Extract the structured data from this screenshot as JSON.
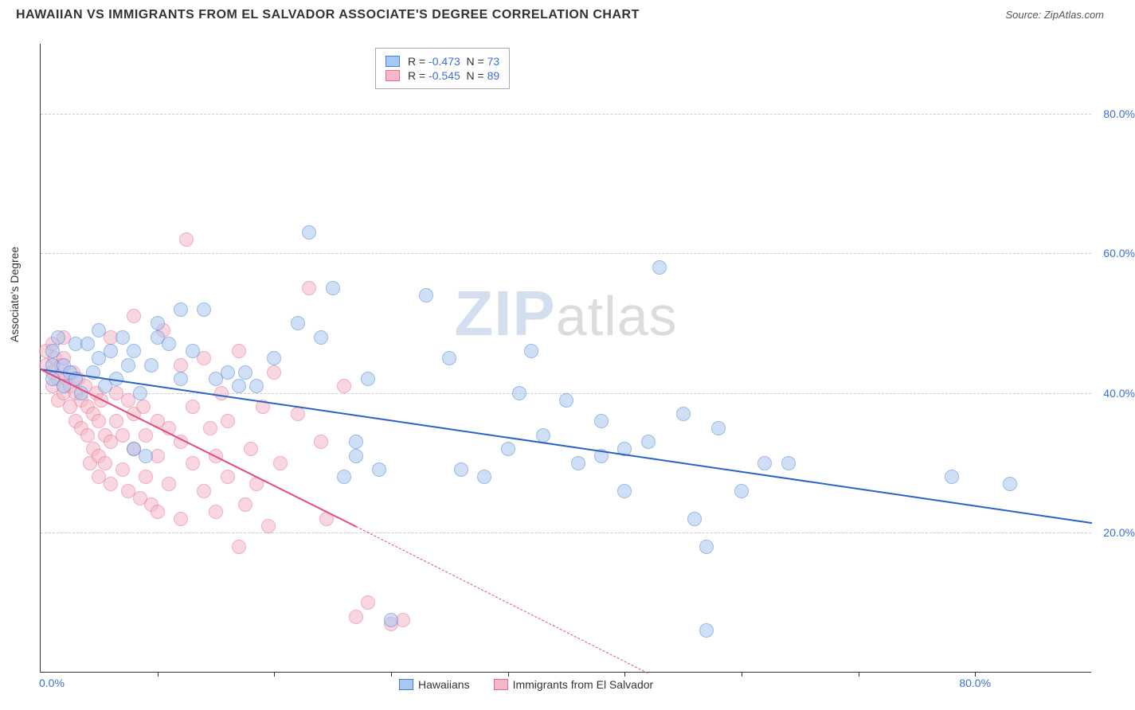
{
  "header": {
    "title": "HAWAIIAN VS IMMIGRANTS FROM EL SALVADOR ASSOCIATE'S DEGREE CORRELATION CHART",
    "source": "Source: ZipAtlas.com"
  },
  "chart": {
    "type": "scatter",
    "ylabel": "Associate's Degree",
    "watermark_left": "ZIP",
    "watermark_right": "atlas",
    "background_color": "#ffffff",
    "grid_color": "#cccccc",
    "axis_color": "#333333",
    "xlim": [
      0,
      90
    ],
    "ylim": [
      0,
      90
    ],
    "yticks": [
      {
        "v": 20,
        "label": "20.0%"
      },
      {
        "v": 40,
        "label": "40.0%"
      },
      {
        "v": 60,
        "label": "60.0%"
      },
      {
        "v": 80,
        "label": "80.0%"
      }
    ],
    "xtick_left": {
      "v": 0,
      "label": "0.0%"
    },
    "xtick_right": {
      "v": 80,
      "label": "80.0%"
    },
    "xtick_marks": [
      10,
      20,
      30,
      40,
      50,
      60,
      70,
      80
    ],
    "series": [
      {
        "name": "Hawaiians",
        "fill_color": "#a8c8f0",
        "fill_opacity": 0.55,
        "stroke_color": "#4a7fd8",
        "marker_radius": 9,
        "R": "-0.473",
        "N": "73",
        "trend": {
          "x1": 0,
          "y1": 43.5,
          "x2": 90,
          "y2": 21.5,
          "color": "#2a62c8"
        },
        "points": [
          [
            1,
            44
          ],
          [
            1,
            46
          ],
          [
            1,
            42
          ],
          [
            1.5,
            48
          ],
          [
            2,
            44
          ],
          [
            2,
            41
          ],
          [
            2.5,
            43
          ],
          [
            3,
            47
          ],
          [
            3,
            42
          ],
          [
            3.5,
            40
          ],
          [
            4,
            47
          ],
          [
            4.5,
            43
          ],
          [
            5,
            45
          ],
          [
            5,
            49
          ],
          [
            5.5,
            41
          ],
          [
            6,
            46
          ],
          [
            6.5,
            42
          ],
          [
            7,
            48
          ],
          [
            7.5,
            44
          ],
          [
            8,
            46
          ],
          [
            8,
            32
          ],
          [
            8.5,
            40
          ],
          [
            9,
            31
          ],
          [
            9.5,
            44
          ],
          [
            10,
            48
          ],
          [
            10,
            50
          ],
          [
            11,
            47
          ],
          [
            12,
            42
          ],
          [
            12,
            52
          ],
          [
            13,
            46
          ],
          [
            14,
            52
          ],
          [
            15,
            42
          ],
          [
            16,
            43
          ],
          [
            17,
            41
          ],
          [
            17.5,
            43
          ],
          [
            18.5,
            41
          ],
          [
            20,
            45
          ],
          [
            22,
            50
          ],
          [
            23,
            63
          ],
          [
            24,
            48
          ],
          [
            25,
            55
          ],
          [
            26,
            28
          ],
          [
            27,
            33
          ],
          [
            27,
            31
          ],
          [
            28,
            42
          ],
          [
            29,
            29
          ],
          [
            30,
            7.5
          ],
          [
            33,
            54
          ],
          [
            35,
            45
          ],
          [
            36,
            29
          ],
          [
            38,
            28
          ],
          [
            40,
            32
          ],
          [
            41,
            40
          ],
          [
            42,
            46
          ],
          [
            43,
            34
          ],
          [
            45,
            39
          ],
          [
            46,
            30
          ],
          [
            48,
            36
          ],
          [
            48,
            31
          ],
          [
            50,
            32
          ],
          [
            50,
            26
          ],
          [
            52,
            33
          ],
          [
            53,
            58
          ],
          [
            55,
            37
          ],
          [
            56,
            22
          ],
          [
            57,
            18
          ],
          [
            57,
            6
          ],
          [
            58,
            35
          ],
          [
            60,
            26
          ],
          [
            62,
            30
          ],
          [
            64,
            30
          ],
          [
            78,
            28
          ],
          [
            83,
            27
          ]
        ]
      },
      {
        "name": "Immigrants from El Salvador",
        "fill_color": "#f5b8c8",
        "fill_opacity": 0.55,
        "stroke_color": "#e86a8e",
        "marker_radius": 9,
        "R": "-0.545",
        "N": "89",
        "trend": {
          "x1": 0,
          "y1": 43.5,
          "x2": 27,
          "y2": 21,
          "color": "#e84a7a"
        },
        "trend_dash": {
          "x1": 27,
          "y1": 21,
          "x2": 52,
          "y2": 0,
          "color": "#e84a7a"
        },
        "points": [
          [
            0.5,
            46
          ],
          [
            0.5,
            44
          ],
          [
            1,
            47
          ],
          [
            1,
            43
          ],
          [
            1,
            41
          ],
          [
            1.2,
            45
          ],
          [
            1.5,
            42
          ],
          [
            1.5,
            39
          ],
          [
            1.8,
            44
          ],
          [
            2,
            48
          ],
          [
            2,
            40
          ],
          [
            2,
            45
          ],
          [
            2.2,
            42
          ],
          [
            2.5,
            41
          ],
          [
            2.5,
            38
          ],
          [
            2.8,
            43
          ],
          [
            3,
            40
          ],
          [
            3,
            36
          ],
          [
            3.2,
            42
          ],
          [
            3.5,
            39
          ],
          [
            3.5,
            35
          ],
          [
            3.8,
            41
          ],
          [
            4,
            38
          ],
          [
            4,
            34
          ],
          [
            4.2,
            30
          ],
          [
            4.5,
            37
          ],
          [
            4.5,
            32
          ],
          [
            4.8,
            40
          ],
          [
            5,
            36
          ],
          [
            5,
            31
          ],
          [
            5,
            28
          ],
          [
            5.2,
            39
          ],
          [
            5.5,
            34
          ],
          [
            5.5,
            30
          ],
          [
            6,
            48
          ],
          [
            6,
            33
          ],
          [
            6,
            27
          ],
          [
            6.5,
            40
          ],
          [
            6.5,
            36
          ],
          [
            7,
            34
          ],
          [
            7,
            29
          ],
          [
            7.5,
            39
          ],
          [
            7.5,
            26
          ],
          [
            8,
            37
          ],
          [
            8,
            32
          ],
          [
            8,
            51
          ],
          [
            8.5,
            25
          ],
          [
            8.8,
            38
          ],
          [
            9,
            34
          ],
          [
            9,
            28
          ],
          [
            9.5,
            24
          ],
          [
            10,
            36
          ],
          [
            10,
            31
          ],
          [
            10,
            23
          ],
          [
            10.5,
            49
          ],
          [
            11,
            35
          ],
          [
            11,
            27
          ],
          [
            12,
            44
          ],
          [
            12,
            33
          ],
          [
            12,
            22
          ],
          [
            12.5,
            62
          ],
          [
            13,
            38
          ],
          [
            13,
            30
          ],
          [
            14,
            26
          ],
          [
            14,
            45
          ],
          [
            14.5,
            35
          ],
          [
            15,
            23
          ],
          [
            15,
            31
          ],
          [
            15.5,
            40
          ],
          [
            16,
            28
          ],
          [
            16,
            36
          ],
          [
            17,
            18
          ],
          [
            17,
            46
          ],
          [
            17.5,
            24
          ],
          [
            18,
            32
          ],
          [
            18.5,
            27
          ],
          [
            19,
            38
          ],
          [
            19.5,
            21
          ],
          [
            20,
            43
          ],
          [
            20.5,
            30
          ],
          [
            22,
            37
          ],
          [
            23,
            55
          ],
          [
            24,
            33
          ],
          [
            24.5,
            22
          ],
          [
            26,
            41
          ],
          [
            27,
            8
          ],
          [
            28,
            10
          ],
          [
            30,
            7
          ],
          [
            31,
            7.5
          ]
        ]
      }
    ]
  }
}
